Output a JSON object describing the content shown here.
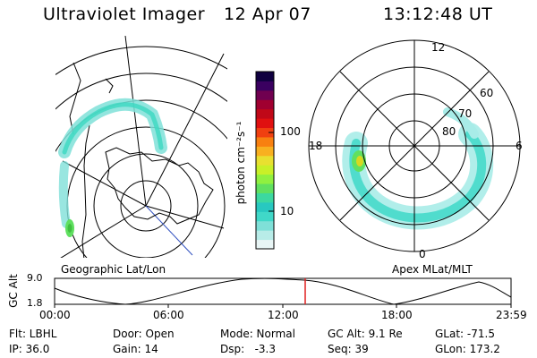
{
  "header": {
    "instrument": "Ultraviolet Imager",
    "date": "12 Apr 07",
    "time": "13:12:48 UT"
  },
  "left_map": {
    "caption": "Geographic Lat/Lon"
  },
  "right_map": {
    "caption": "Apex MLat/MLT",
    "lat_labels": [
      "80",
      "70",
      "60"
    ],
    "mlt_labels": {
      "top": "12",
      "right": "6",
      "bottom": "0",
      "left": "18"
    }
  },
  "colorbar": {
    "unit_label": "photon cm⁻²s⁻¹",
    "ticks": [
      "100",
      "10"
    ],
    "colors": [
      "#e8f5f5",
      "#b8ece8",
      "#7fe0d8",
      "#40d8c8",
      "#28c8c0",
      "#3cd8a0",
      "#60e060",
      "#90f040",
      "#c8f028",
      "#e8e030",
      "#f8b020",
      "#f88010",
      "#f04010",
      "#e01010",
      "#c00818",
      "#a00030",
      "#700050",
      "#3a0060",
      "#100040"
    ]
  },
  "altitude_plot": {
    "axis_label": "GC Alt",
    "y_ticks": [
      "9.0",
      "1.8"
    ],
    "x_ticks": [
      "00:00",
      "06:00",
      "12:00",
      "18:00",
      "23:59"
    ],
    "cursor_color": "#e02020"
  },
  "status": {
    "row1": [
      "Flt: LBHL",
      "Door: Open",
      "Mode: Normal",
      "GC Alt: 9.1 Re",
      "GLat: -71.5"
    ],
    "row2": [
      "IP: 36.0",
      "Gain: 14",
      "Dsp:   -3.3",
      "Seq: 39",
      "GLon: 173.2"
    ]
  }
}
